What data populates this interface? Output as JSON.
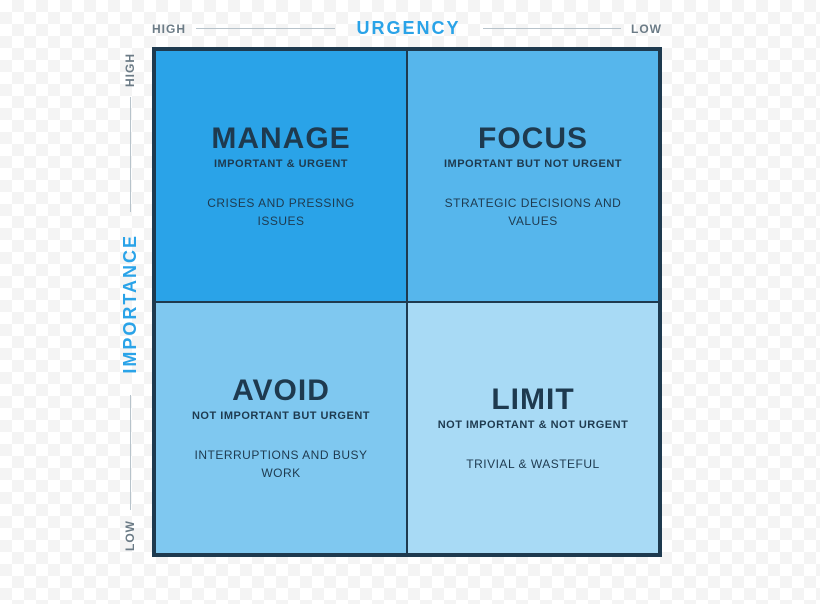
{
  "axes": {
    "x": {
      "title": "URGENCY",
      "left": "HIGH",
      "right": "LOW",
      "title_color": "#2aa3e8"
    },
    "y": {
      "title": "IMPORTANCE",
      "top": "HIGH",
      "bottom": "LOW",
      "title_color": "#2aa3e8"
    }
  },
  "matrix": {
    "border_color": "#1e3a4f",
    "grid_color": "#1e3a4f",
    "quadrants": [
      {
        "key": "manage",
        "title": "MANAGE",
        "subtitle": "IMPORTANT & URGENT",
        "desc": "CRISES AND PRESSING ISSUES",
        "bg": "#2aa3e8",
        "text_color": "#1e3a4f"
      },
      {
        "key": "focus",
        "title": "FOCUS",
        "subtitle": "IMPORTANT BUT NOT URGENT",
        "desc": "STRATEGIC DECISIONS AND VALUES",
        "bg": "#56b6ec",
        "text_color": "#1e3a4f"
      },
      {
        "key": "avoid",
        "title": "AVOID",
        "subtitle": "NOT IMPORTANT BUT URGENT",
        "desc": "INTERRUPTIONS AND BUSY WORK",
        "bg": "#7fc8f0",
        "text_color": "#1e3a4f"
      },
      {
        "key": "limit",
        "title": "LIMIT",
        "subtitle": "NOT IMPORTANT & NOT URGENT",
        "desc": "TRIVIAL & WASTEFUL",
        "bg": "#a8daf5",
        "text_color": "#1e3a4f"
      }
    ]
  },
  "style": {
    "axis_end_color": "#6b7b86",
    "axis_line_color": "#b7c3cb",
    "title_fontsize": 30,
    "subtitle_fontsize": 11,
    "desc_fontsize": 12,
    "axis_title_fontsize": 18
  }
}
